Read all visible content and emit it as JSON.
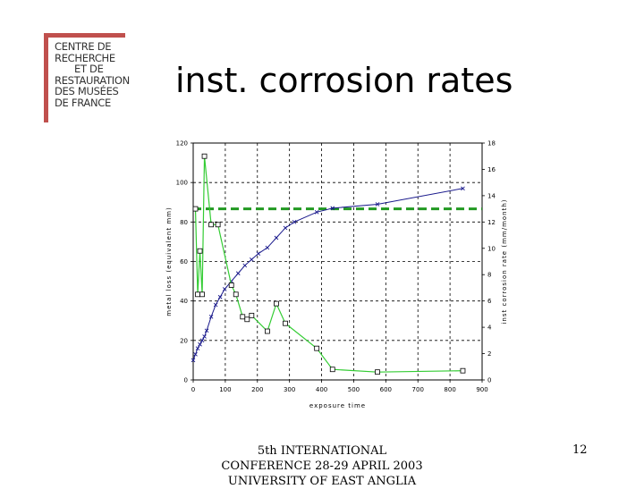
{
  "logo": {
    "lines": [
      "CENTRE DE",
      "RECHERCHE",
      "ET DE",
      "RESTAURATION",
      "DES MUSÉES",
      "DE FRANCE"
    ]
  },
  "slide": {
    "title": "inst. corrosion rates",
    "footer_lines": [
      "5th INTERNATIONAL",
      "CONFERENCE 28-29 APRIL 2003",
      "UNIVERSITY OF EAST ANGLIA"
    ],
    "page_number": "12"
  },
  "colors": {
    "metal_loss": "#1a1a8c",
    "corrosion_rate": "#33cc33",
    "reference": "#229922"
  },
  "chart_data": {
    "type": "line",
    "xlabel": "exposure time",
    "ylabel_left": "metal loss (equivalent mm)",
    "ylabel_right": "inst corrosion rate (mm/month)",
    "xlim": [
      0,
      900
    ],
    "xticks": [
      0,
      100,
      200,
      300,
      400,
      500,
      600,
      700,
      800,
      900
    ],
    "ylim_left": [
      0,
      120
    ],
    "yticks_left": [
      0,
      20,
      40,
      60,
      80,
      100,
      120
    ],
    "ylim_right": [
      0,
      18
    ],
    "yticks_right": [
      0,
      2,
      4,
      6,
      8,
      10,
      12,
      14,
      16,
      18
    ],
    "grid": true,
    "series": [
      {
        "axis": "left",
        "marker": "x",
        "x": [
          0,
          7,
          14,
          21,
          28,
          35,
          42,
          56,
          70,
          84,
          98,
          119,
          140,
          161,
          182,
          203,
          231,
          259,
          287,
          315,
          385,
          434,
          574,
          840
        ],
        "y": [
          10,
          13,
          16,
          18,
          20,
          22,
          25,
          32,
          38,
          42,
          46,
          50,
          54,
          58,
          61,
          64,
          67,
          72,
          77,
          80,
          85,
          87,
          89,
          97
        ]
      },
      {
        "axis": "right",
        "marker": "square",
        "x": [
          7,
          14,
          21,
          28,
          35,
          56,
          77,
          119,
          133,
          154,
          168,
          182,
          231,
          259,
          287,
          385,
          434,
          574,
          840
        ],
        "y": [
          13,
          6.5,
          9.8,
          6.5,
          17,
          11.8,
          11.8,
          7.2,
          6.5,
          4.8,
          4.6,
          4.9,
          3.7,
          5.8,
          4.3,
          2.4,
          0.8,
          0.6,
          0.7
        ]
      }
    ],
    "reference_line": {
      "axis": "right",
      "y": 13,
      "style": "dashed"
    }
  }
}
